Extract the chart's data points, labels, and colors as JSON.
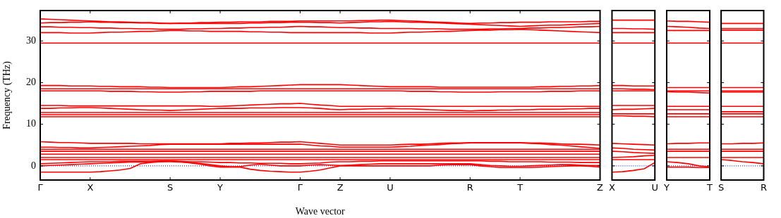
{
  "chart_data": [
    {
      "type": "line",
      "xlabel": "Wave vector",
      "ylabel": "Frequency (THz)",
      "ylim": [
        -3.4,
        37.3
      ],
      "yticks": [
        0,
        10,
        20,
        30
      ],
      "marker": "none",
      "legend": false,
      "grid": false,
      "categories": [
        "Γ",
        null,
        null,
        null,
        null,
        "X",
        null,
        null,
        null,
        null,
        null,
        null,
        null,
        "S",
        null,
        null,
        null,
        null,
        "Y",
        null,
        null,
        null,
        null,
        null,
        null,
        null,
        "Γ",
        null,
        null,
        null,
        "Z",
        null,
        null,
        null,
        null,
        "U",
        null,
        null,
        null,
        null,
        null,
        null,
        null,
        "R",
        null,
        null,
        null,
        null,
        "T",
        null,
        null,
        null,
        null,
        null,
        null,
        null,
        "Z"
      ],
      "ref_lines": [
        {
          "axis": "y",
          "value": 0,
          "color": "#0000ff",
          "line_style": "dotted"
        }
      ],
      "series": [
        {
          "color": "#ff0000",
          "values": [
            35.3,
            35.2,
            35.1,
            35.0,
            34.9,
            34.8,
            34.7,
            34.6,
            34.6,
            34.5,
            34.4,
            34.4,
            34.3,
            34.2,
            34.3,
            34.3,
            34.4,
            34.4,
            34.5,
            34.5,
            34.6,
            34.6,
            34.6,
            34.7,
            34.7,
            34.7,
            34.8,
            34.8,
            34.8,
            34.8,
            34.8,
            34.8,
            34.9,
            34.9,
            35.0,
            35.0,
            34.9,
            34.8,
            34.7,
            34.6,
            34.5,
            34.4,
            34.3,
            34.2,
            34.3,
            34.3,
            34.4,
            34.4,
            34.5,
            34.5,
            34.5,
            34.6,
            34.6,
            34.6,
            34.6,
            34.7,
            34.7
          ]
        },
        {
          "color": "#ff0000",
          "values": [
            34.3,
            34.4,
            34.4,
            34.5,
            34.5,
            34.6,
            34.5,
            34.5,
            34.4,
            34.4,
            34.3,
            34.3,
            34.2,
            34.2,
            34.2,
            34.2,
            34.2,
            34.2,
            34.2,
            34.2,
            34.2,
            34.3,
            34.3,
            34.4,
            34.4,
            34.5,
            34.5,
            34.5,
            34.4,
            34.4,
            34.3,
            34.4,
            34.5,
            34.6,
            34.6,
            34.7,
            34.6,
            34.5,
            34.5,
            34.4,
            34.3,
            34.2,
            34.1,
            34.0,
            33.9,
            33.8,
            33.7,
            33.6,
            33.5,
            33.6,
            33.7,
            33.8,
            33.8,
            33.9,
            34.0,
            34.1,
            34.2
          ]
        },
        {
          "color": "#ff0000",
          "values": [
            33.4,
            33.4,
            33.3,
            33.3,
            33.2,
            33.2,
            33.1,
            33.1,
            33.0,
            33.0,
            32.9,
            32.9,
            32.8,
            32.8,
            32.8,
            32.9,
            32.9,
            33.0,
            33.0,
            33.1,
            33.1,
            33.2,
            33.2,
            33.3,
            33.3,
            33.4,
            33.5,
            33.4,
            33.4,
            33.3,
            33.2,
            33.2,
            33.1,
            33.1,
            33.0,
            33.0,
            33.0,
            33.0,
            32.9,
            32.9,
            32.9,
            32.8,
            32.8,
            32.8,
            32.8,
            32.9,
            32.9,
            33.0,
            33.0,
            33.1,
            33.1,
            33.2,
            33.2,
            33.3,
            33.4,
            33.4,
            33.5
          ]
        },
        {
          "color": "#ff0000",
          "values": [
            32.0,
            32.0,
            32.0,
            31.9,
            31.9,
            31.9,
            32.0,
            32.1,
            32.1,
            32.2,
            32.3,
            32.3,
            32.4,
            32.5,
            32.5,
            32.4,
            32.4,
            32.3,
            32.3,
            32.3,
            32.3,
            32.2,
            32.2,
            32.1,
            32.1,
            32.0,
            32.0,
            32.0,
            32.0,
            32.0,
            32.0,
            32.0,
            32.0,
            31.9,
            31.9,
            31.9,
            32.0,
            32.1,
            32.1,
            32.2,
            32.3,
            32.3,
            32.4,
            32.5,
            32.6,
            32.6,
            32.7,
            32.7,
            32.8,
            32.7,
            32.6,
            32.5,
            32.4,
            32.3,
            32.2,
            32.1,
            32.0
          ]
        },
        {
          "color": "#ff0000",
          "values": [
            29.5,
            29.5,
            29.5,
            29.5,
            29.5,
            29.5,
            29.5,
            29.5,
            29.5,
            29.5,
            29.5,
            29.5,
            29.5,
            29.5,
            29.5,
            29.5,
            29.5,
            29.5,
            29.5,
            29.5,
            29.5,
            29.5,
            29.5,
            29.5,
            29.5,
            29.5,
            29.5,
            29.5,
            29.5,
            29.5,
            29.5,
            29.5,
            29.5,
            29.5,
            29.5,
            29.5,
            29.5,
            29.5,
            29.5,
            29.5,
            29.5,
            29.5,
            29.5,
            29.5,
            29.5,
            29.5,
            29.5,
            29.5,
            29.5,
            29.5,
            29.5,
            29.5,
            29.5,
            29.5,
            29.5,
            29.5,
            29.5
          ]
        },
        {
          "color": "#ff0000",
          "values": [
            19.3,
            19.3,
            19.3,
            19.2,
            19.2,
            19.2,
            19.1,
            19.1,
            19.0,
            19.0,
            19.0,
            18.9,
            18.9,
            18.8,
            18.8,
            18.8,
            18.8,
            18.8,
            18.8,
            18.9,
            19.0,
            19.0,
            19.1,
            19.2,
            19.3,
            19.4,
            19.5,
            19.5,
            19.5,
            19.5,
            19.5,
            19.4,
            19.3,
            19.2,
            19.1,
            19.0,
            19.0,
            19.0,
            19.0,
            19.0,
            18.9,
            18.9,
            18.9,
            18.9,
            18.9,
            18.9,
            18.9,
            18.9,
            18.9,
            18.9,
            19.0,
            19.0,
            19.1,
            19.1,
            19.2,
            19.2,
            19.3
          ]
        },
        {
          "color": "#ff0000",
          "values": [
            18.5,
            18.5,
            18.5,
            18.5,
            18.5,
            18.5,
            18.5,
            18.5,
            18.5,
            18.5,
            18.5,
            18.5,
            18.5,
            18.5,
            18.5,
            18.5,
            18.5,
            18.5,
            18.5,
            18.5,
            18.5,
            18.5,
            18.5,
            18.5,
            18.5,
            18.5,
            18.5,
            18.5,
            18.5,
            18.5,
            18.5,
            18.5,
            18.5,
            18.5,
            18.5,
            18.5,
            18.5,
            18.5,
            18.5,
            18.5,
            18.5,
            18.5,
            18.5,
            18.5,
            18.5,
            18.5,
            18.5,
            18.5,
            18.5,
            18.5,
            18.5,
            18.5,
            18.5,
            18.5,
            18.5,
            18.5,
            18.5
          ]
        },
        {
          "color": "#ff0000",
          "values": [
            18.0,
            18.0,
            18.0,
            18.0,
            18.0,
            18.0,
            18.0,
            17.9,
            17.9,
            17.9,
            17.8,
            17.8,
            17.7,
            17.7,
            17.7,
            17.8,
            17.8,
            17.9,
            17.9,
            17.9,
            17.9,
            17.9,
            18.0,
            18.0,
            18.0,
            18.0,
            18.0,
            18.0,
            18.0,
            18.0,
            18.0,
            18.0,
            18.0,
            18.0,
            18.0,
            18.0,
            18.0,
            17.9,
            17.9,
            17.9,
            17.8,
            17.8,
            17.7,
            17.7,
            17.7,
            17.7,
            17.8,
            17.8,
            17.8,
            17.8,
            17.8,
            17.9,
            17.9,
            17.9,
            18.0,
            18.0,
            18.0
          ]
        },
        {
          "color": "#ff0000",
          "values": [
            14.5,
            14.5,
            14.5,
            14.4,
            14.4,
            14.4,
            14.4,
            14.4,
            14.4,
            14.4,
            14.4,
            14.4,
            14.4,
            14.4,
            14.4,
            14.4,
            14.4,
            14.3,
            14.3,
            14.4,
            14.5,
            14.6,
            14.7,
            14.8,
            14.9,
            14.9,
            15.0,
            14.8,
            14.6,
            14.5,
            14.3,
            14.3,
            14.3,
            14.3,
            14.3,
            14.3,
            14.3,
            14.3,
            14.3,
            14.3,
            14.3,
            14.3,
            14.3,
            14.3,
            14.3,
            14.3,
            14.3,
            14.3,
            14.3,
            14.3,
            14.3,
            14.3,
            14.3,
            14.3,
            14.3,
            14.3,
            14.3
          ]
        },
        {
          "color": "#ff0000",
          "values": [
            13.8,
            13.8,
            13.9,
            13.9,
            14.0,
            14.0,
            13.9,
            13.8,
            13.7,
            13.6,
            13.5,
            13.4,
            13.4,
            13.3,
            13.4,
            13.5,
            13.6,
            13.7,
            13.8,
            13.8,
            13.8,
            13.9,
            13.9,
            13.9,
            14.0,
            14.0,
            14.0,
            13.9,
            13.8,
            13.6,
            13.5,
            13.6,
            13.6,
            13.7,
            13.7,
            13.8,
            13.7,
            13.7,
            13.6,
            13.5,
            13.4,
            13.3,
            13.3,
            13.2,
            13.3,
            13.3,
            13.4,
            13.4,
            13.5,
            13.5,
            13.6,
            13.6,
            13.6,
            13.7,
            13.7,
            13.8,
            13.8
          ]
        },
        {
          "color": "#ff0000",
          "values": [
            12.8,
            12.8,
            12.8,
            12.8,
            12.8,
            12.8,
            12.8,
            12.8,
            12.8,
            12.8,
            12.8,
            12.8,
            12.8,
            12.8,
            12.8,
            12.8,
            12.8,
            12.8,
            12.8,
            12.8,
            12.8,
            12.8,
            12.8,
            12.8,
            12.8,
            12.8,
            12.8,
            12.8,
            12.8,
            12.8,
            12.8,
            12.8,
            12.8,
            12.8,
            12.8,
            12.8,
            12.8,
            12.8,
            12.8,
            12.8,
            12.8,
            12.8,
            12.8,
            12.8,
            12.8,
            12.8,
            12.8,
            12.8,
            12.8,
            12.8,
            12.8,
            12.8,
            12.8,
            12.8,
            12.8,
            12.8,
            12.8
          ]
        },
        {
          "color": "#ff0000",
          "values": [
            12.3,
            12.3,
            12.3,
            12.3,
            12.3,
            12.3,
            12.3,
            12.3,
            12.3,
            12.3,
            12.3,
            12.3,
            12.3,
            12.3,
            12.3,
            12.3,
            12.3,
            12.3,
            12.3,
            12.3,
            12.3,
            12.3,
            12.3,
            12.3,
            12.3,
            12.3,
            12.3,
            12.3,
            12.3,
            12.3,
            12.3,
            12.3,
            12.3,
            12.3,
            12.3,
            12.3,
            12.3,
            12.3,
            12.3,
            12.3,
            12.3,
            12.3,
            12.3,
            12.3,
            12.3,
            12.3,
            12.3,
            12.3,
            12.3,
            12.3,
            12.3,
            12.3,
            12.3,
            12.3,
            12.3,
            12.3,
            12.3
          ]
        },
        {
          "color": "#ff0000",
          "values": [
            11.8,
            11.8,
            11.8,
            11.8,
            11.8,
            11.8,
            11.8,
            11.8,
            11.8,
            11.8,
            11.8,
            11.8,
            11.8,
            11.8,
            11.8,
            11.8,
            11.8,
            11.8,
            11.8,
            11.8,
            11.8,
            11.8,
            11.8,
            11.8,
            11.8,
            11.8,
            11.8,
            11.8,
            11.8,
            11.8,
            11.8,
            11.8,
            11.8,
            11.8,
            11.8,
            11.8,
            11.8,
            11.8,
            11.8,
            11.8,
            11.8,
            11.8,
            11.8,
            11.8,
            11.8,
            11.8,
            11.8,
            11.8,
            11.8,
            11.8,
            11.8,
            11.8,
            11.8,
            11.8,
            11.8,
            11.8,
            11.8
          ]
        },
        {
          "color": "#ff0000",
          "values": [
            5.8,
            5.7,
            5.6,
            5.6,
            5.5,
            5.4,
            5.4,
            5.4,
            5.4,
            5.4,
            5.3,
            5.3,
            5.3,
            5.3,
            5.3,
            5.3,
            5.3,
            5.3,
            5.3,
            5.4,
            5.4,
            5.5,
            5.5,
            5.6,
            5.7,
            5.7,
            5.8,
            5.6,
            5.4,
            5.2,
            5.0,
            5.0,
            5.0,
            5.0,
            5.0,
            5.0,
            5.1,
            5.2,
            5.2,
            5.3,
            5.4,
            5.5,
            5.5,
            5.6,
            5.6,
            5.6,
            5.6,
            5.6,
            5.6,
            5.5,
            5.5,
            5.4,
            5.3,
            5.2,
            5.2,
            5.1,
            5.0
          ]
        },
        {
          "color": "#ff0000",
          "values": [
            4.5,
            4.5,
            4.4,
            4.4,
            4.3,
            4.3,
            4.4,
            4.5,
            4.6,
            4.7,
            4.8,
            4.9,
            5.1,
            5.2,
            5.2,
            5.2,
            5.2,
            5.2,
            5.2,
            5.2,
            5.2,
            5.2,
            5.2,
            5.2,
            5.2,
            5.2,
            5.2,
            5.0,
            4.8,
            4.7,
            4.5,
            4.5,
            4.5,
            4.5,
            4.5,
            4.5,
            4.6,
            4.7,
            4.9,
            5.0,
            5.1,
            5.3,
            5.4,
            5.5,
            5.5,
            5.5,
            5.5,
            5.5,
            5.5,
            5.4,
            5.3,
            5.1,
            5.0,
            4.8,
            4.6,
            4.4,
            4.2
          ]
        },
        {
          "color": "#ff0000",
          "values": [
            4.0,
            4.0,
            4.0,
            4.0,
            4.0,
            4.0,
            4.0,
            4.0,
            4.0,
            4.0,
            4.0,
            4.0,
            4.0,
            4.0,
            4.0,
            4.0,
            4.0,
            4.0,
            4.0,
            4.0,
            4.0,
            4.0,
            4.0,
            4.0,
            4.0,
            4.0,
            4.0,
            4.0,
            4.0,
            4.0,
            4.0,
            4.0,
            4.0,
            4.0,
            4.0,
            4.0,
            4.0,
            4.0,
            4.0,
            4.0,
            4.0,
            4.0,
            4.0,
            4.0,
            4.0,
            4.0,
            4.0,
            4.0,
            4.0,
            4.0,
            4.0,
            4.0,
            4.0,
            4.0,
            4.0,
            4.0,
            4.0
          ]
        },
        {
          "color": "#ff0000",
          "values": [
            3.5,
            3.5,
            3.5,
            3.5,
            3.5,
            3.5,
            3.5,
            3.5,
            3.5,
            3.5,
            3.5,
            3.5,
            3.5,
            3.5,
            3.5,
            3.5,
            3.5,
            3.5,
            3.5,
            3.5,
            3.5,
            3.5,
            3.5,
            3.5,
            3.5,
            3.5,
            3.5,
            3.5,
            3.5,
            3.5,
            3.5,
            3.5,
            3.5,
            3.5,
            3.5,
            3.5,
            3.5,
            3.5,
            3.5,
            3.5,
            3.5,
            3.5,
            3.5,
            3.5,
            3.5,
            3.5,
            3.5,
            3.5,
            3.5,
            3.5,
            3.5,
            3.5,
            3.5,
            3.5,
            3.5,
            3.5,
            3.5
          ]
        },
        {
          "color": "#ff0000",
          "values": [
            2.8,
            2.8,
            2.8,
            2.8,
            2.8,
            2.8,
            2.8,
            2.8,
            2.8,
            2.8,
            2.8,
            2.8,
            2.8,
            2.8,
            2.8,
            2.8,
            2.8,
            2.8,
            2.8,
            2.8,
            2.8,
            2.8,
            2.8,
            2.8,
            2.8,
            2.8,
            2.8,
            2.8,
            2.8,
            2.8,
            2.8,
            2.8,
            2.8,
            2.8,
            2.8,
            2.8,
            2.8,
            2.8,
            2.8,
            2.8,
            2.8,
            2.8,
            2.8,
            2.8,
            2.8,
            2.8,
            2.8,
            2.8,
            2.8,
            2.8,
            2.8,
            2.8,
            2.8,
            2.8,
            2.8,
            2.8,
            2.8
          ]
        },
        {
          "color": "#ff0000",
          "values": [
            2.0,
            2.0,
            2.0,
            2.0,
            2.0,
            2.0,
            2.0,
            2.0,
            2.0,
            2.0,
            2.0,
            2.0,
            2.0,
            2.0,
            2.0,
            2.0,
            2.0,
            2.0,
            2.0,
            2.0,
            2.0,
            2.0,
            2.0,
            2.0,
            2.0,
            2.0,
            2.0,
            2.0,
            2.0,
            2.0,
            2.0,
            2.0,
            2.0,
            2.0,
            2.0,
            2.0,
            2.0,
            2.0,
            2.0,
            2.0,
            2.0,
            2.0,
            2.0,
            2.0,
            2.0,
            2.0,
            2.0,
            2.0,
            2.0,
            2.0,
            2.0,
            2.0,
            2.0,
            2.0,
            2.0,
            2.0,
            2.0
          ]
        },
        {
          "color": "#ff0000",
          "values": [
            1.5,
            1.5,
            1.5,
            1.5,
            1.5,
            1.5,
            1.5,
            1.5,
            1.5,
            1.5,
            1.5,
            1.5,
            1.5,
            1.5,
            1.5,
            1.5,
            1.5,
            1.5,
            1.5,
            1.5,
            1.5,
            1.5,
            1.5,
            1.5,
            1.5,
            1.5,
            1.5,
            1.5,
            1.5,
            1.5,
            1.5,
            1.5,
            1.5,
            1.5,
            1.5,
            1.5,
            1.5,
            1.5,
            1.5,
            1.5,
            1.5,
            1.5,
            1.5,
            1.5,
            1.5,
            1.5,
            1.5,
            1.5,
            1.5,
            1.5,
            1.5,
            1.5,
            1.5,
            1.5,
            1.5,
            1.5,
            1.5
          ]
        },
        {
          "color": "#ff0000",
          "values": [
            0.5,
            0.6,
            0.7,
            0.8,
            0.9,
            1.0,
            1.0,
            1.0,
            1.1,
            1.1,
            1.1,
            1.1,
            1.2,
            1.2,
            1.1,
            1.0,
            1.0,
            0.9,
            0.8,
            0.8,
            0.7,
            0.7,
            0.6,
            0.6,
            0.6,
            0.5,
            0.5,
            0.6,
            0.7,
            0.9,
            1.0,
            1.0,
            1.1,
            1.1,
            1.2,
            1.2,
            1.2,
            1.2,
            1.2,
            1.2,
            1.2,
            1.2,
            1.2,
            1.2,
            1.2,
            1.1,
            1.1,
            1.0,
            1.0,
            1.0,
            1.0,
            0.9,
            0.9,
            0.9,
            0.8,
            0.8,
            0.8
          ]
        },
        {
          "color": "#ff0000",
          "values": [
            0,
            0.1,
            0.2,
            0.3,
            0.4,
            0.5,
            0.6,
            0.7,
            0.8,
            0.9,
            0.9,
            1.0,
            1.0,
            1.0,
            0.9,
            0.8,
            0.6,
            0.3,
            0,
            -0.2,
            -0.2,
            0.2,
            0.4,
            0.2,
            0,
            0,
            0,
            0.2,
            0.3,
            0.2,
            0.1,
            0.2,
            0.3,
            0.4,
            0.5,
            0.5,
            0.5,
            0.5,
            0.5,
            0.5,
            0.5,
            0.5,
            0.5,
            0.5,
            0.3,
            0.1,
            0,
            -0.1,
            -0.1,
            0,
            0.1,
            0.2,
            0.3,
            0.3,
            0.2,
            0.1,
            0.1
          ]
        },
        {
          "color": "#ff0000",
          "values": [
            -1.5,
            -1.5,
            -1.5,
            -1.5,
            -1.5,
            -1.5,
            -1.4,
            -1.2,
            -1.0,
            -0.6,
            0.5,
            0.8,
            1.0,
            1.2,
            1.0,
            0.7,
            0.4,
            0,
            -0.3,
            -0.3,
            -0.3,
            -0.8,
            -1.1,
            -1.3,
            -1.4,
            -1.5,
            -1.5,
            -1.3,
            -1.0,
            -0.5,
            0,
            0,
            0,
            0,
            0,
            0,
            0,
            0,
            0,
            0,
            0.2,
            0.3,
            0.3,
            0.3,
            0,
            -0.2,
            -0.4,
            -0.4,
            -0.4,
            -0.4,
            -0.3,
            -0.2,
            -0.1,
            0,
            0,
            -0.1,
            -0.3
          ]
        }
      ]
    },
    {
      "type": "line",
      "ylim": [
        -3.4,
        37.3
      ],
      "yticks": [
        0,
        10,
        20,
        30
      ],
      "marker": "none",
      "legend": false,
      "grid": false,
      "tick_labels": "x",
      "categories": [
        "X",
        null,
        null,
        null,
        "U"
      ],
      "ref_lines": [
        {
          "axis": "y",
          "value": 0,
          "color": "#0000ff",
          "line_style": "dotted"
        }
      ],
      "series": [
        {
          "color": "#ff0000",
          "values": [
            35.0,
            35.0,
            35.0,
            35.0,
            35.0
          ]
        },
        {
          "color": "#ff0000",
          "values": [
            33.0,
            33.0,
            32.9,
            32.9,
            32.8
          ]
        },
        {
          "color": "#ff0000",
          "values": [
            32.0,
            32.0,
            32.0,
            32.0,
            32.0
          ]
        },
        {
          "color": "#ff0000",
          "values": [
            29.5,
            29.5,
            29.5,
            29.5,
            29.5
          ]
        },
        {
          "color": "#ff0000",
          "values": [
            19.3,
            19.3,
            19.2,
            19.2,
            19.2
          ]
        },
        {
          "color": "#ff0000",
          "values": [
            18.5,
            18.5,
            18.4,
            18.4,
            18.3
          ]
        },
        {
          "color": "#ff0000",
          "values": [
            18.0,
            18.0,
            18.0,
            18.0,
            18.0
          ]
        },
        {
          "color": "#ff0000",
          "values": [
            14.5,
            14.5,
            14.5,
            14.5,
            14.5
          ]
        },
        {
          "color": "#ff0000",
          "values": [
            13.5,
            13.6,
            13.6,
            13.7,
            13.8
          ]
        },
        {
          "color": "#ff0000",
          "values": [
            12.5,
            12.5,
            12.5,
            12.5,
            12.5
          ]
        },
        {
          "color": "#ff0000",
          "values": [
            12.0,
            12.0,
            11.9,
            11.9,
            11.8
          ]
        },
        {
          "color": "#ff0000",
          "values": [
            5.4,
            5.3,
            5.2,
            5.1,
            5.0
          ]
        },
        {
          "color": "#ff0000",
          "values": [
            4.3,
            4.2,
            4.0,
            3.9,
            3.8
          ]
        },
        {
          "color": "#ff0000",
          "values": [
            3.5,
            3.4,
            3.2,
            3.1,
            3.0
          ]
        },
        {
          "color": "#ff0000",
          "values": [
            2.0,
            2.1,
            2.2,
            2.4,
            2.5
          ]
        },
        {
          "color": "#ff0000",
          "values": [
            1.5,
            1.5,
            1.5,
            1.5,
            1.5
          ]
        },
        {
          "color": "#ff0000",
          "values": [
            -1.5,
            -1.4,
            -1.1,
            -0.7,
            0.8
          ]
        }
      ]
    },
    {
      "type": "line",
      "ylim": [
        -3.4,
        37.3
      ],
      "yticks": [
        0,
        10,
        20,
        30
      ],
      "marker": "none",
      "legend": false,
      "grid": false,
      "tick_labels": "x",
      "categories": [
        "Y",
        null,
        null,
        null,
        "T"
      ],
      "ref_lines": [
        {
          "axis": "y",
          "value": 0,
          "color": "#0000ff",
          "line_style": "dotted"
        }
      ],
      "series": [
        {
          "color": "#ff0000",
          "values": [
            34.8,
            34.7,
            34.7,
            34.6,
            34.5
          ]
        },
        {
          "color": "#ff0000",
          "values": [
            33.5,
            33.4,
            33.3,
            33.1,
            33.0
          ]
        },
        {
          "color": "#ff0000",
          "values": [
            32.5,
            32.5,
            32.5,
            32.5,
            32.5
          ]
        },
        {
          "color": "#ff0000",
          "values": [
            29.5,
            29.5,
            29.5,
            29.5,
            29.5
          ]
        },
        {
          "color": "#ff0000",
          "values": [
            18.8,
            18.8,
            18.8,
            18.8,
            18.8
          ]
        },
        {
          "color": "#ff0000",
          "values": [
            18.0,
            18.0,
            18.0,
            18.0,
            18.0
          ]
        },
        {
          "color": "#ff0000",
          "values": [
            17.8,
            17.7,
            17.7,
            17.6,
            17.5
          ]
        },
        {
          "color": "#ff0000",
          "values": [
            14.3,
            14.3,
            14.3,
            14.3,
            14.3
          ]
        },
        {
          "color": "#ff0000",
          "values": [
            13.5,
            13.5,
            13.5,
            13.5,
            13.5
          ]
        },
        {
          "color": "#ff0000",
          "values": [
            12.5,
            12.5,
            12.5,
            12.5,
            12.5
          ]
        },
        {
          "color": "#ff0000",
          "values": [
            11.8,
            11.8,
            11.8,
            11.8,
            11.8
          ]
        },
        {
          "color": "#ff0000",
          "values": [
            5.3,
            5.4,
            5.4,
            5.5,
            5.5
          ]
        },
        {
          "color": "#ff0000",
          "values": [
            4.0,
            4.0,
            4.0,
            4.0,
            4.0
          ]
        },
        {
          "color": "#ff0000",
          "values": [
            3.5,
            3.5,
            3.5,
            3.5,
            3.5
          ]
        },
        {
          "color": "#ff0000",
          "values": [
            2.0,
            2.0,
            2.0,
            2.0,
            2.0
          ]
        },
        {
          "color": "#ff0000",
          "values": [
            1.0,
            0.8,
            0.5,
            0,
            -0.3
          ]
        },
        {
          "color": "#ff0000",
          "values": [
            -0.3,
            -0.3,
            -0.3,
            -0.4,
            -0.4
          ]
        }
      ]
    },
    {
      "type": "line",
      "ylim": [
        -3.4,
        37.3
      ],
      "yticks": [
        0,
        10,
        20,
        30
      ],
      "marker": "none",
      "legend": false,
      "grid": false,
      "tick_labels": "x",
      "categories": [
        "S",
        null,
        null,
        null,
        "R"
      ],
      "ref_lines": [
        {
          "axis": "y",
          "value": 0,
          "color": "#0000ff",
          "line_style": "dotted"
        }
      ],
      "series": [
        {
          "color": "#ff0000",
          "values": [
            34.2,
            34.2,
            34.2,
            34.2,
            34.2
          ]
        },
        {
          "color": "#ff0000",
          "values": [
            33.0,
            33.0,
            33.0,
            33.0,
            33.0
          ]
        },
        {
          "color": "#ff0000",
          "values": [
            32.6,
            32.6,
            32.6,
            32.6,
            32.6
          ]
        },
        {
          "color": "#ff0000",
          "values": [
            29.5,
            29.5,
            29.5,
            29.5,
            29.5
          ]
        },
        {
          "color": "#ff0000",
          "values": [
            18.8,
            18.8,
            18.8,
            18.8,
            18.8
          ]
        },
        {
          "color": "#ff0000",
          "values": [
            18.0,
            18.0,
            18.0,
            18.0,
            18.0
          ]
        },
        {
          "color": "#ff0000",
          "values": [
            17.7,
            17.7,
            17.7,
            17.7,
            17.7
          ]
        },
        {
          "color": "#ff0000",
          "values": [
            14.3,
            14.3,
            14.3,
            14.3,
            14.3
          ]
        },
        {
          "color": "#ff0000",
          "values": [
            13.0,
            13.0,
            13.0,
            13.0,
            13.0
          ]
        },
        {
          "color": "#ff0000",
          "values": [
            12.5,
            12.5,
            12.5,
            12.5,
            12.5
          ]
        },
        {
          "color": "#ff0000",
          "values": [
            11.8,
            11.8,
            11.8,
            11.8,
            11.8
          ]
        },
        {
          "color": "#ff0000",
          "values": [
            5.3,
            5.3,
            5.4,
            5.4,
            5.5
          ]
        },
        {
          "color": "#ff0000",
          "values": [
            4.0,
            4.0,
            4.0,
            4.0,
            4.0
          ]
        },
        {
          "color": "#ff0000",
          "values": [
            3.5,
            3.5,
            3.5,
            3.5,
            3.5
          ]
        },
        {
          "color": "#ff0000",
          "values": [
            2.0,
            2.0,
            2.0,
            2.0,
            2.0
          ]
        },
        {
          "color": "#ff0000",
          "values": [
            1.5,
            1.3,
            1.0,
            0.8,
            0.5
          ]
        }
      ]
    }
  ]
}
